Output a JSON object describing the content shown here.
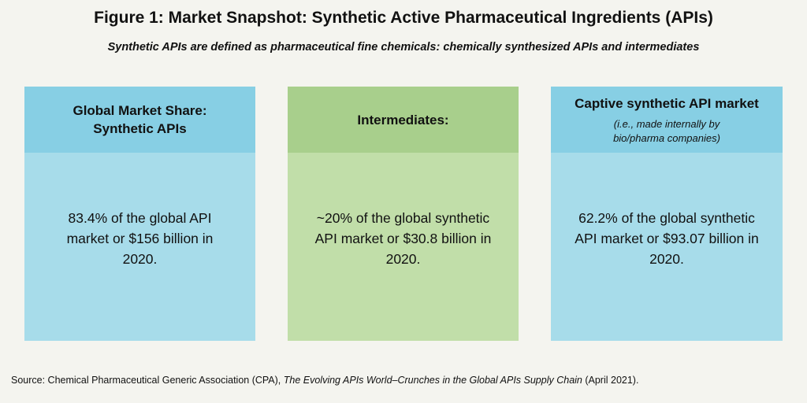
{
  "title": "Figure 1: Market Snapshot: Synthetic Active Pharmaceutical Ingredients (APIs)",
  "subtitle": "Synthetic APIs are defined as pharmaceutical fine chemicals: chemically synthesized APIs and intermediates",
  "cards": [
    {
      "header": "Global Market Share: Synthetic APIs",
      "body": "83.4% of the global API market or $156 billion in 2020."
    },
    {
      "header": "Intermediates:",
      "body": "~20% of the global synthetic API market or $30.8 billion in 2020."
    },
    {
      "header": "Captive synthetic API market",
      "note": "(i.e., made internally by bio/pharma companies)",
      "body": "62.2% of the global synthetic API market or $93.07 billion in 2020."
    }
  ],
  "source": {
    "prefix": "Source: Chemical Pharmaceutical Generic Association (CPA), ",
    "work": "The Evolving APIs World–Crunches in the Global APIs Supply Chain",
    "suffix": " (April 2021)."
  },
  "colors": {
    "background": "#f4f4ef",
    "blue_header": "#87cfe4",
    "blue_body": "#a7dcea",
    "green_header": "#a8cf8c",
    "green_body": "#c1dea9",
    "text": "#111111"
  }
}
